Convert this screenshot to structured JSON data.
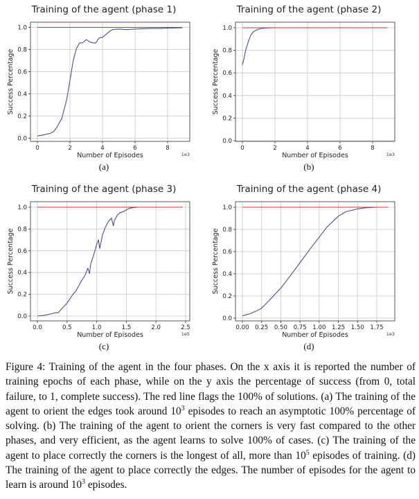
{
  "figure": {
    "number": "Figure 4",
    "caption_parts": [
      "Figure 4: Training of the agent in the four phases. On the x axis it is reported the number of training epochs of each phase, while on the y axis the percentage of success (from 0, total failure, to 1, complete success). The red line flags the 100% of solutions. (a) The training of the agent to orient the edges took around 10",
      "3",
      " episodes to reach an asymptotic 100% percentage of solving. (b) The training of the agent to orient the corners is very fast compared to the other phases, and very efficient, as the agent learns to solve 100% of cases. (c) The training of the agent to place correctly the corners is the longest of all, more than 10",
      "5",
      " episodes of training. (d) The training of the agent to place correctly the edges. The number of episodes for the agent to learn is around 10",
      "3",
      " episodes."
    ]
  },
  "colors": {
    "series_line": "#4b4f86",
    "target_line": "#e0282e",
    "grid": "#c8c8c8",
    "frame": "#555555"
  },
  "panels": [
    {
      "label": "(a)",
      "title": "Training of the agent (phase 1)",
      "xlabel": "Number of Episodes",
      "ylabel": "Success Percentage",
      "x_exponent": "1e3",
      "xticks": [
        "0",
        "2",
        "4",
        "6",
        "8"
      ],
      "yticks": [
        "0.0",
        "0.2",
        "0.4",
        "0.6",
        "0.8",
        "1.0"
      ]
    },
    {
      "label": "(b)",
      "title": "Training of the agent (phase 2)",
      "xlabel": "Number of Episodes",
      "ylabel": "Success Percentage",
      "x_exponent": "1e3",
      "xticks": [
        "0",
        "2",
        "4",
        "6",
        "8"
      ],
      "yticks": [
        "0.0",
        "0.2",
        "0.4",
        "0.6",
        "0.8",
        "1.0"
      ]
    },
    {
      "label": "(c)",
      "title": "Training of the agent (phase 3)",
      "xlabel": "Number of Episodes",
      "ylabel": "Success Percentage",
      "x_exponent": "1e5",
      "xticks": [
        "0.0",
        "0.5",
        "1.0",
        "1.5",
        "2.0",
        "2.5"
      ],
      "yticks": [
        "0.0",
        "0.2",
        "0.4",
        "0.6",
        "0.8",
        "1.0"
      ]
    },
    {
      "label": "(d)",
      "title": "Training of the agent (phase 4)",
      "xlabel": "Number of Episodes",
      "ylabel": "Success Percentage",
      "x_exponent": "1e3",
      "xticks": [
        "0.00",
        "0.25",
        "0.50",
        "0.75",
        "1.00",
        "1.25",
        "1.50",
        "1.75"
      ],
      "yticks": [
        "0.0",
        "0.2",
        "0.4",
        "0.6",
        "0.8",
        "1.0"
      ]
    }
  ],
  "chart_data": [
    {
      "type": "line",
      "title": "Training of the agent (phase 1)",
      "xlabel": "Number of Episodes (x1e3)",
      "ylabel": "Success Percentage",
      "xlim": [
        -0.4,
        9.5
      ],
      "ylim": [
        -0.02,
        1.05
      ],
      "grid": true,
      "legend": "none",
      "series": [
        {
          "name": "success",
          "color": "#4b4f86",
          "x": [
            0,
            0.5,
            0.8,
            1.0,
            1.2,
            1.5,
            1.8,
            2.0,
            2.2,
            2.4,
            2.6,
            2.75,
            2.85,
            3.0,
            3.2,
            3.4,
            3.6,
            3.7,
            3.8,
            4.0,
            4.2,
            4.4,
            4.6,
            5.0,
            5.5,
            6.0,
            6.5,
            7.0,
            7.5,
            8.0,
            8.5,
            8.9
          ],
          "y": [
            0.02,
            0.035,
            0.045,
            0.06,
            0.1,
            0.18,
            0.35,
            0.52,
            0.7,
            0.81,
            0.86,
            0.86,
            0.87,
            0.89,
            0.87,
            0.86,
            0.86,
            0.885,
            0.905,
            0.91,
            0.935,
            0.96,
            0.98,
            0.985,
            0.98,
            0.985,
            0.988,
            0.99,
            0.99,
            0.993,
            0.995,
            0.996
          ]
        },
        {
          "name": "target (100%)",
          "color": "#e0282e",
          "x": [
            0,
            8.9
          ],
          "y": [
            1.0,
            1.0
          ]
        }
      ]
    },
    {
      "type": "line",
      "title": "Training of the agent (phase 2)",
      "xlabel": "Number of Episodes (x1e3)",
      "ylabel": "Success Percentage",
      "xlim": [
        -0.4,
        9.5
      ],
      "ylim": [
        0.0,
        1.05
      ],
      "grid": true,
      "legend": "none",
      "series": [
        {
          "name": "success",
          "color": "#4b4f86",
          "x": [
            0,
            0.1,
            0.2,
            0.35,
            0.5,
            0.65,
            0.8,
            1.0,
            1.2,
            1.5,
            2.0,
            3.0,
            5.0,
            8.9
          ],
          "y": [
            0.67,
            0.73,
            0.8,
            0.87,
            0.93,
            0.96,
            0.975,
            0.988,
            0.994,
            0.998,
            1.0,
            1.0,
            1.0,
            1.0
          ]
        },
        {
          "name": "target (100%)",
          "color": "#e0282e",
          "x": [
            0,
            8.9
          ],
          "y": [
            1.0,
            1.0
          ]
        }
      ]
    },
    {
      "type": "line",
      "title": "Training of the agent (phase 3)",
      "xlabel": "Number of Episodes (x1e5)",
      "ylabel": "Success Percentage",
      "xlim": [
        -0.12,
        2.58
      ],
      "ylim": [
        -0.02,
        1.05
      ],
      "grid": true,
      "legend": "none",
      "series": [
        {
          "name": "success",
          "color": "#4b4f86",
          "x": [
            0.0,
            0.1,
            0.2,
            0.3,
            0.35,
            0.4,
            0.45,
            0.5,
            0.55,
            0.6,
            0.65,
            0.7,
            0.75,
            0.8,
            0.85,
            0.88,
            0.9,
            0.95,
            1.0,
            1.03,
            1.05,
            1.1,
            1.15,
            1.2,
            1.25,
            1.28,
            1.3,
            1.35,
            1.4,
            1.45,
            1.5,
            1.55,
            1.6,
            1.7,
            2.0,
            2.45
          ],
          "y": [
            0.0,
            0.005,
            0.015,
            0.03,
            0.03,
            0.06,
            0.09,
            0.12,
            0.16,
            0.2,
            0.23,
            0.28,
            0.33,
            0.37,
            0.44,
            0.39,
            0.48,
            0.56,
            0.66,
            0.7,
            0.62,
            0.75,
            0.82,
            0.87,
            0.9,
            0.83,
            0.88,
            0.93,
            0.95,
            0.96,
            0.975,
            0.99,
            0.995,
            1.0,
            1.0,
            1.0
          ]
        },
        {
          "name": "target (100%)",
          "color": "#e0282e",
          "x": [
            0.0,
            2.45
          ],
          "y": [
            1.0,
            1.0
          ]
        }
      ]
    },
    {
      "type": "line",
      "title": "Training of the agent (phase 4)",
      "xlabel": "Number of Episodes (x1e3)",
      "ylabel": "Success Percentage",
      "xlim": [
        -0.09,
        1.99
      ],
      "ylim": [
        -0.02,
        1.05
      ],
      "grid": true,
      "legend": "none",
      "series": [
        {
          "name": "success",
          "color": "#4b4f86",
          "x": [
            0.0,
            0.1,
            0.2,
            0.25,
            0.35,
            0.5,
            0.6,
            0.75,
            0.9,
            1.0,
            1.1,
            1.25,
            1.35,
            1.5,
            1.6,
            1.75,
            1.9
          ],
          "y": [
            0.02,
            0.04,
            0.07,
            0.09,
            0.16,
            0.27,
            0.36,
            0.5,
            0.64,
            0.73,
            0.82,
            0.92,
            0.96,
            0.985,
            0.995,
            1.0,
            1.0
          ]
        },
        {
          "name": "target (100%)",
          "color": "#e0282e",
          "x": [
            0.0,
            1.9
          ],
          "y": [
            1.0,
            1.0
          ]
        }
      ]
    }
  ]
}
